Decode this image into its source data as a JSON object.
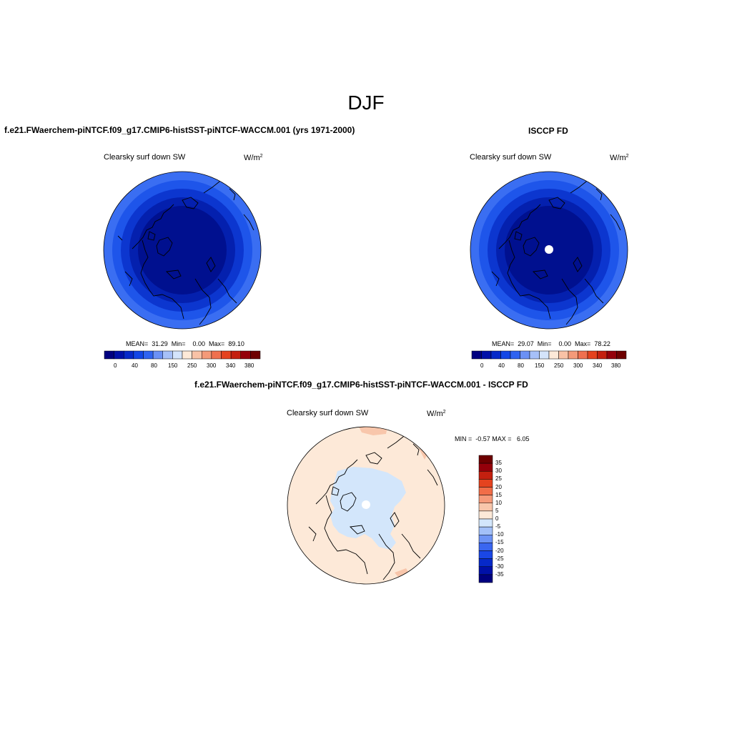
{
  "page": {
    "title": "DJF"
  },
  "colors": {
    "abs_bins": [
      "#00007f",
      "#0010a8",
      "#0629c9",
      "#1246e6",
      "#2f63f0",
      "#6b91f5",
      "#a6c0f8",
      "#d4e4fb",
      "#fde9d8",
      "#f8c2a6",
      "#f49a79",
      "#ef704f",
      "#e5421e",
      "#c4200f",
      "#94000a",
      "#6e0000"
    ],
    "diff_bins": [
      "#00007f",
      "#0010a8",
      "#0629c9",
      "#1a47e6",
      "#3a66f0",
      "#6d93f5",
      "#a3c0f8",
      "#d3e6fb",
      "#fde9d8",
      "#f8c6ab",
      "#f59a7a",
      "#f16d48",
      "#e5431f",
      "#c4200f",
      "#94000a",
      "#6e0000"
    ]
  },
  "panels": [
    {
      "title": "f.e21.FWaerchem-piNTCF.f09_g17.CMIP6-histSST-piNTCF-WACCM.001 (yrs 1971-2000)",
      "variable": "Clearsky surf down SW",
      "units": "W/m",
      "units_sup": "2",
      "stats_text": "MEAN=  31.29  Min=    0.00  Max=  89.10",
      "stats": {
        "mean": 31.29,
        "min": 0.0,
        "max": 89.1
      },
      "colorbar_ticks": [
        "0",
        "40",
        "80",
        "150",
        "250",
        "300",
        "340",
        "380"
      ],
      "pole_hole": false
    },
    {
      "title": "ISCCP FD",
      "variable": "Clearsky surf down SW",
      "units": "W/m",
      "units_sup": "2",
      "stats_text": "MEAN=  29.07  Min=    0.00  Max=  78.22",
      "stats": {
        "mean": 29.07,
        "min": 0.0,
        "max": 78.22
      },
      "colorbar_ticks": [
        "0",
        "40",
        "80",
        "150",
        "250",
        "300",
        "340",
        "380"
      ],
      "pole_hole": true
    }
  ],
  "difference": {
    "title": "f.e21.FWaerchem-piNTCF.f09_g17.CMIP6-histSST-piNTCF-WACCM.001 - ISCCP FD",
    "variable": "Clearsky surf down SW",
    "units": "W/m",
    "units_sup": "2",
    "stats_text": "MIN =  -0.57 MAX =   6.05",
    "stats": {
      "min": -0.57,
      "max": 6.05
    },
    "colorbar_ticks": [
      "35",
      "30",
      "25",
      "20",
      "15",
      "10",
      "5",
      "0",
      "-5",
      "-10",
      "-15",
      "-20",
      "-25",
      "-30",
      "-35"
    ]
  }
}
